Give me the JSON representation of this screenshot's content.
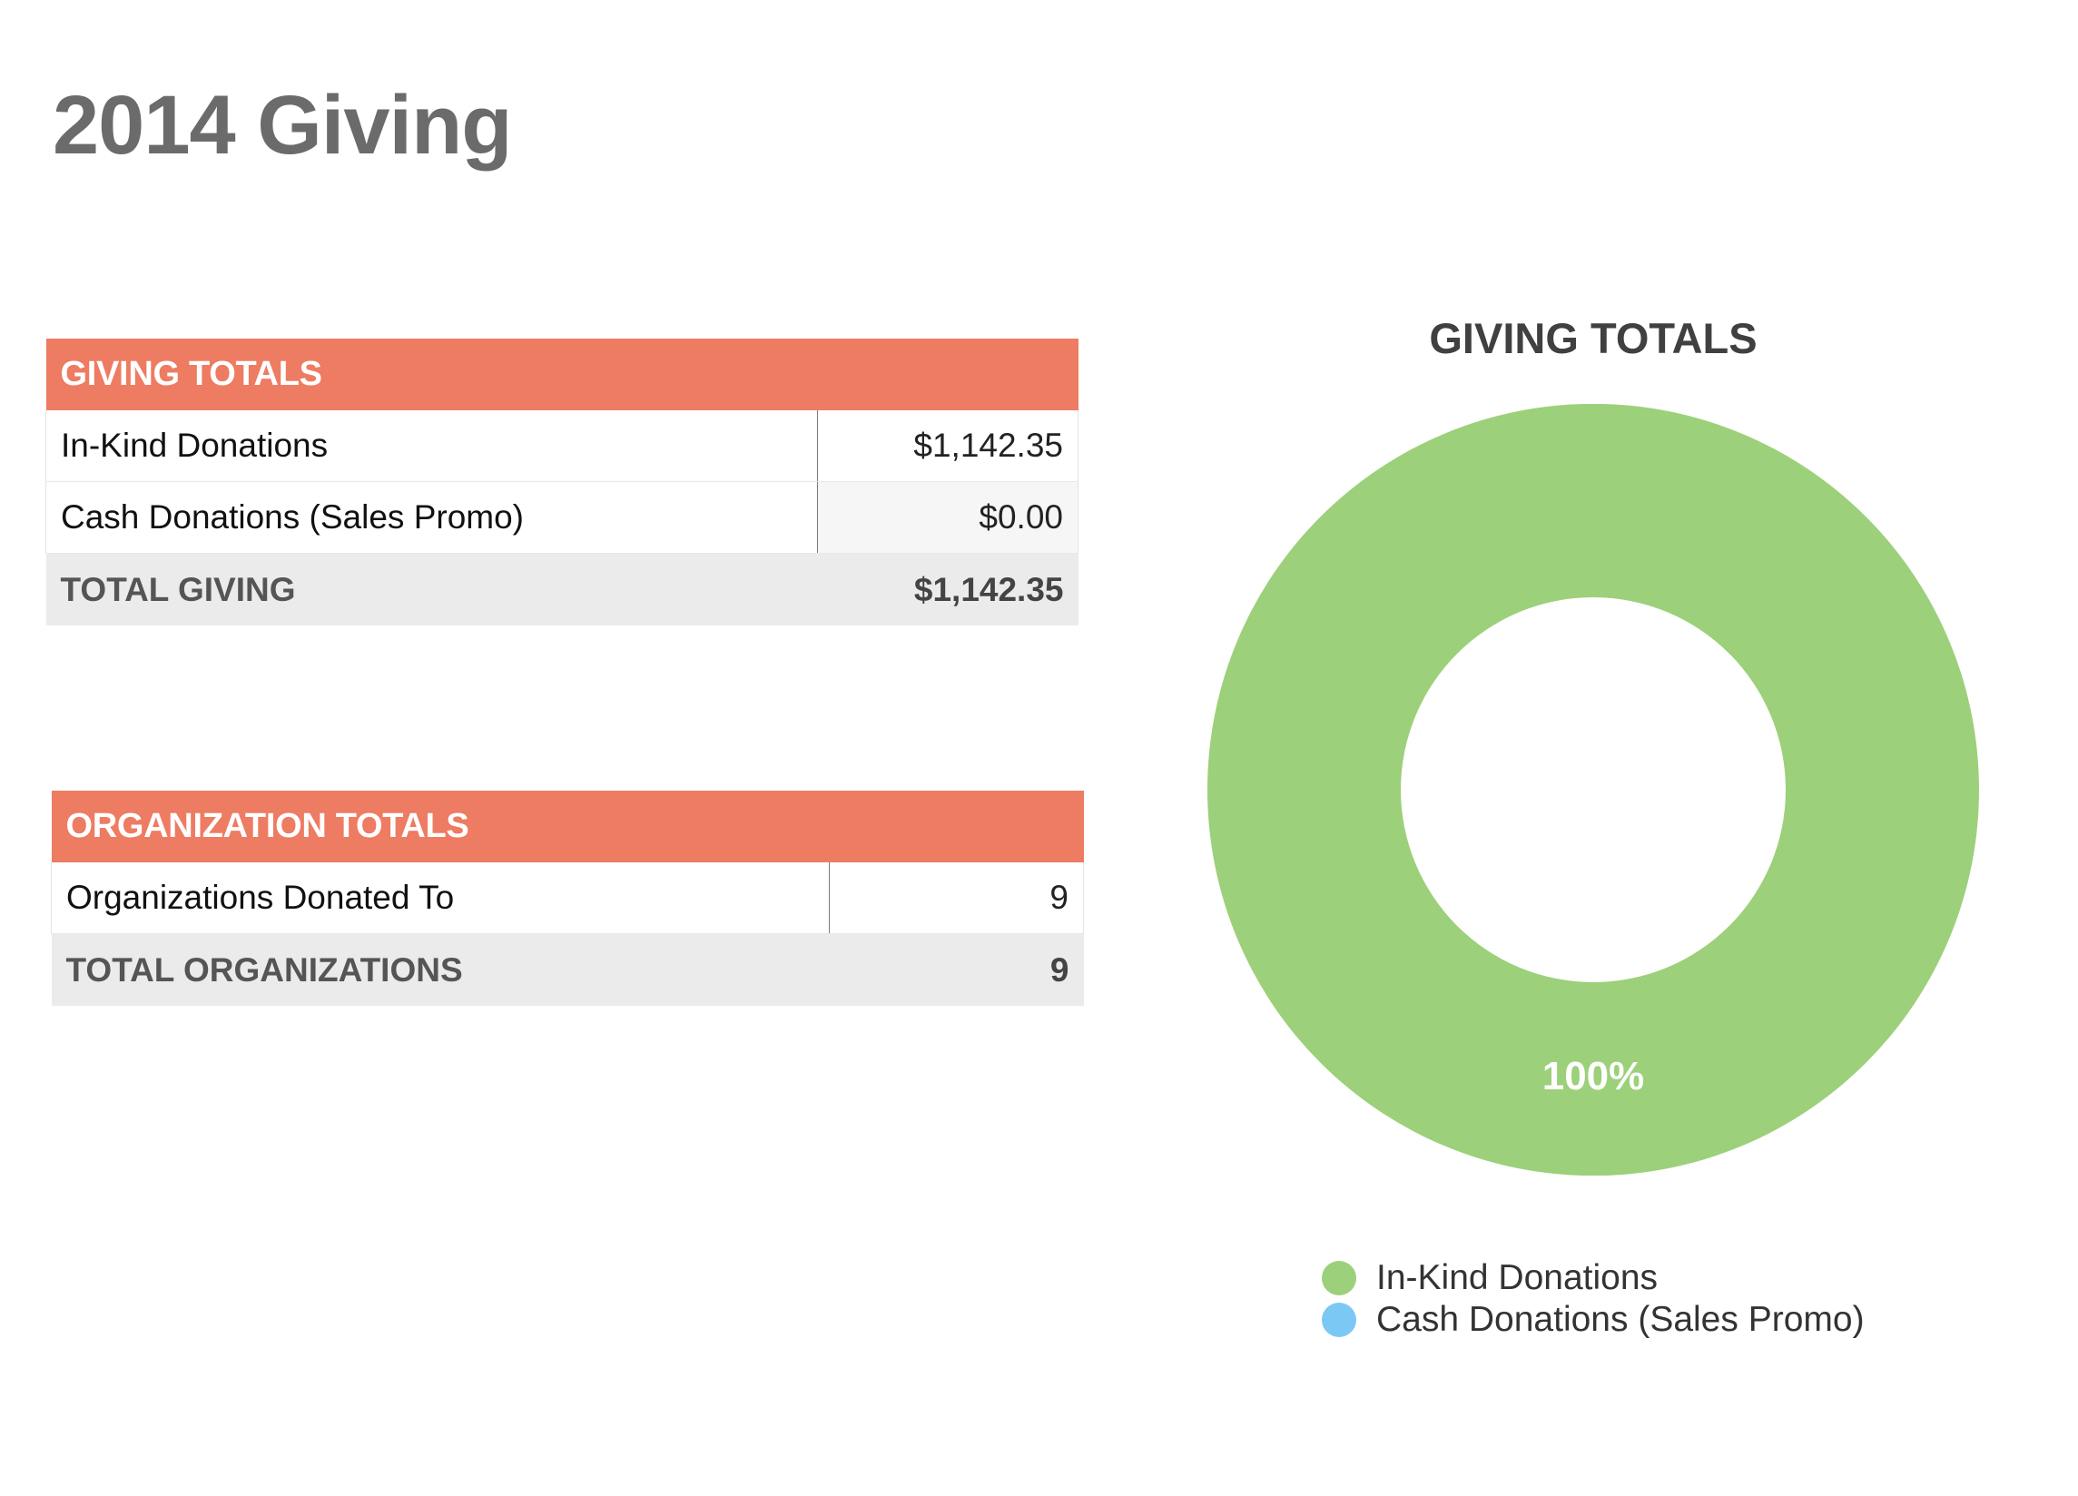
{
  "page": {
    "title": "2014 Giving"
  },
  "giving_table": {
    "header": "GIVING TOTALS",
    "rows": [
      {
        "label": "In-Kind Donations",
        "value": "$1,142.35"
      },
      {
        "label": "Cash Donations (Sales Promo)",
        "value": "$0.00"
      }
    ],
    "total": {
      "label": "TOTAL GIVING",
      "value": "$1,142.35"
    }
  },
  "org_table": {
    "header": "ORGANIZATION TOTALS",
    "rows": [
      {
        "label": "Organizations Donated To",
        "value": "9"
      }
    ],
    "total": {
      "label": "TOTAL ORGANIZATIONS",
      "value": "9"
    }
  },
  "colors": {
    "header_accent": "#ed7c62",
    "in_kind": "#9cd07a",
    "cash": "#7cc8f5"
  },
  "chart_data": {
    "type": "pie",
    "variant": "donut",
    "title": "GIVING TOTALS",
    "categories": [
      "In-Kind Donations",
      "Cash Donations (Sales Promo)"
    ],
    "values": [
      1142.35,
      0.0
    ],
    "colors": [
      "#9cd07a",
      "#7cc8f5"
    ],
    "data_labels": [
      "100%",
      ""
    ],
    "legend": {
      "placement": "bottom",
      "entries": [
        "In-Kind Donations",
        "Cash Donations (Sales Promo)"
      ]
    }
  }
}
